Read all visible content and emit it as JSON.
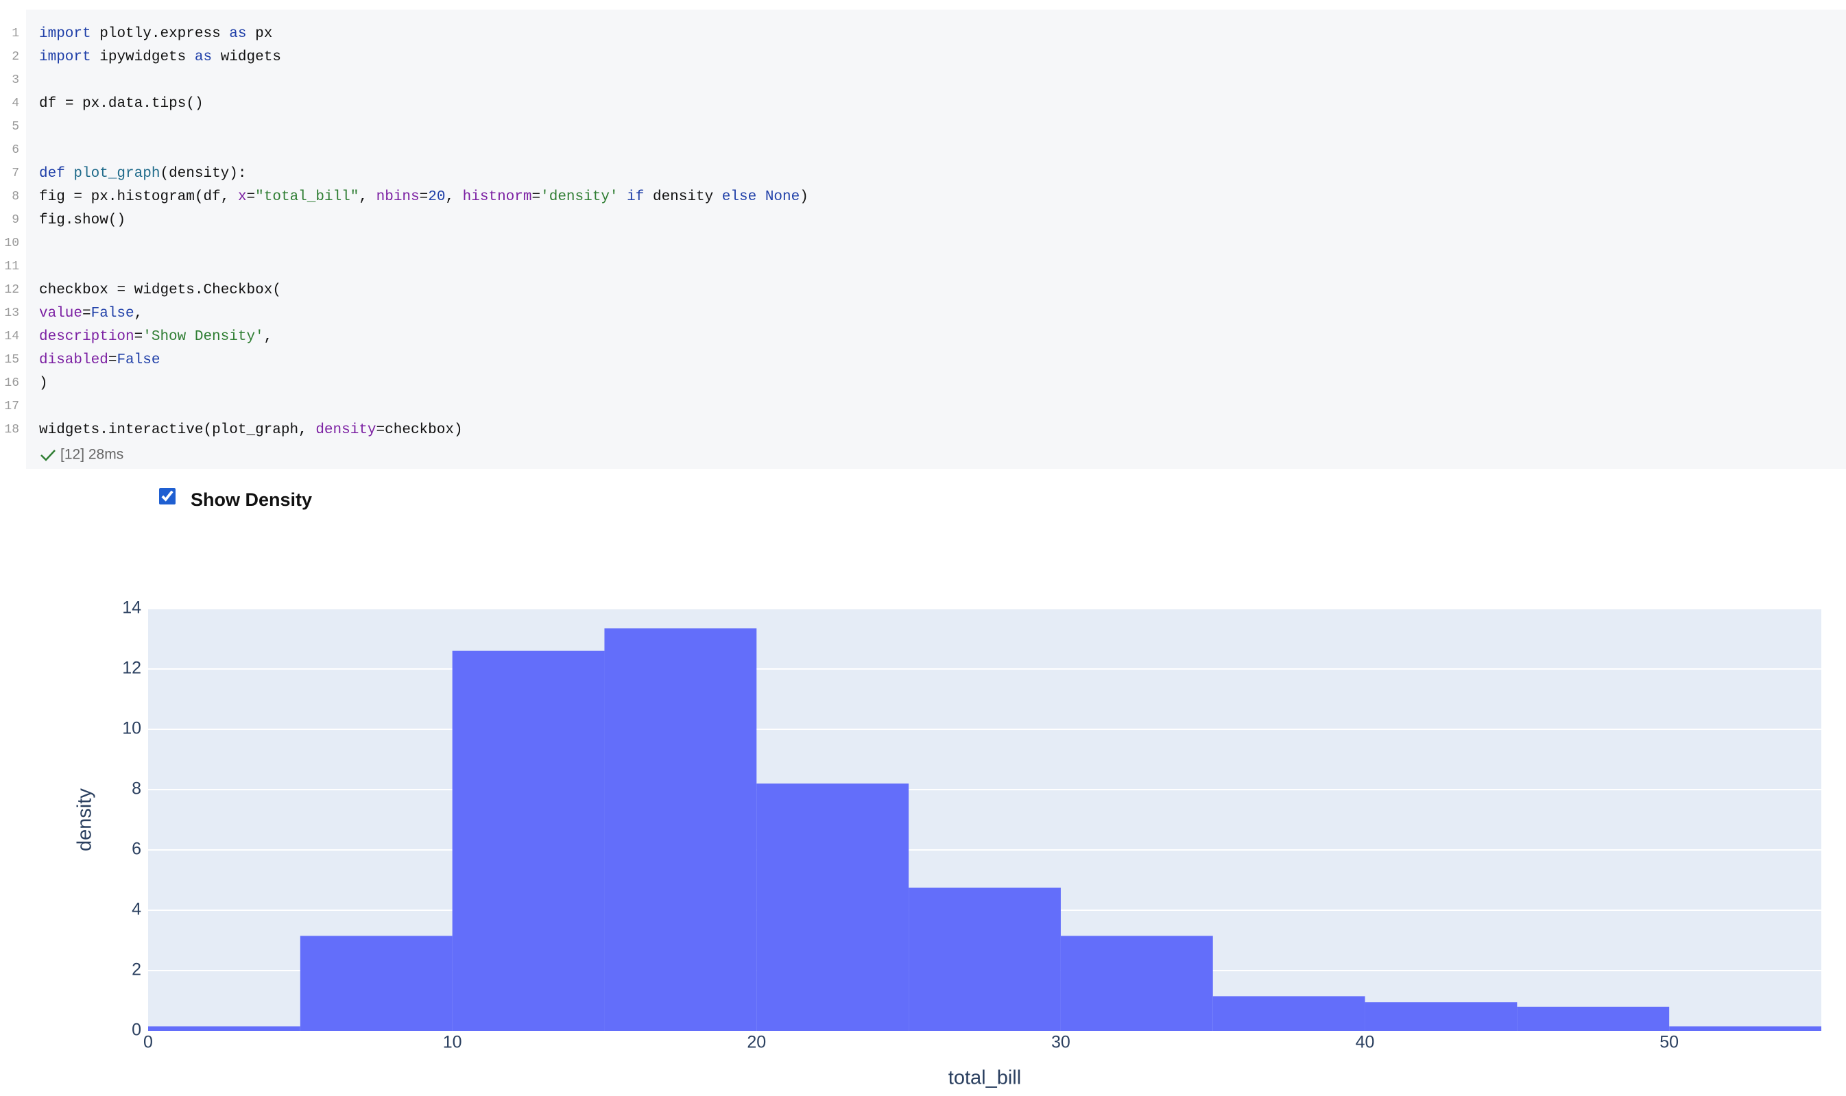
{
  "cell": {
    "lines": [
      {
        "number": 1,
        "text": "import plotly.express as px"
      },
      {
        "number": 2,
        "text": "import ipywidgets as widgets"
      },
      {
        "number": 3,
        "text": null
      },
      {
        "number": 4,
        "text": "df = px.data.tips()"
      },
      {
        "number": 5,
        "text": null
      },
      {
        "number": 6,
        "text": null
      },
      {
        "number": 7,
        "text": "def plot_graph(density):"
      },
      {
        "number": 8,
        "text": "    fig = px.histogram(df, x=\"total_bill\", nbins=20, histnorm='density' if density else None)"
      },
      {
        "number": 9,
        "text": "    fig.show()"
      },
      {
        "number": 10,
        "text": null
      },
      {
        "number": 11,
        "text": null
      },
      {
        "number": 12,
        "text": "checkbox = widgets.Checkbox("
      },
      {
        "number": 13,
        "text": "    value=False,"
      },
      {
        "number": 14,
        "text": "    description='Show Density',"
      },
      {
        "number": 15,
        "text": "    disabled=False"
      },
      {
        "number": 16,
        "text": ")"
      },
      {
        "number": 17,
        "text": null
      },
      {
        "number": 18,
        "text": "widgets.interactive(plot_graph, density=checkbox)"
      }
    ],
    "status": "[12] 28ms"
  },
  "widget": {
    "checkbox_label": "Show Density",
    "checked": true
  },
  "chart_data": {
    "type": "histogram",
    "bins": [
      0,
      5,
      10,
      15,
      20,
      25,
      30,
      35,
      40,
      45,
      50,
      55
    ],
    "values": [
      0.15,
      3.15,
      12.6,
      13.35,
      8.2,
      4.75,
      3.15,
      1.15,
      0.95,
      0.8,
      0.15
    ],
    "color": "#636efa",
    "xlim": [
      0,
      55
    ],
    "ylim": [
      0,
      14
    ],
    "xticks": [
      0,
      10,
      20,
      30,
      40,
      50
    ],
    "yticks": [
      0,
      2,
      4,
      6,
      8,
      10,
      12,
      14
    ],
    "x_label": "total_bill",
    "y_label": "density",
    "grid": true
  }
}
